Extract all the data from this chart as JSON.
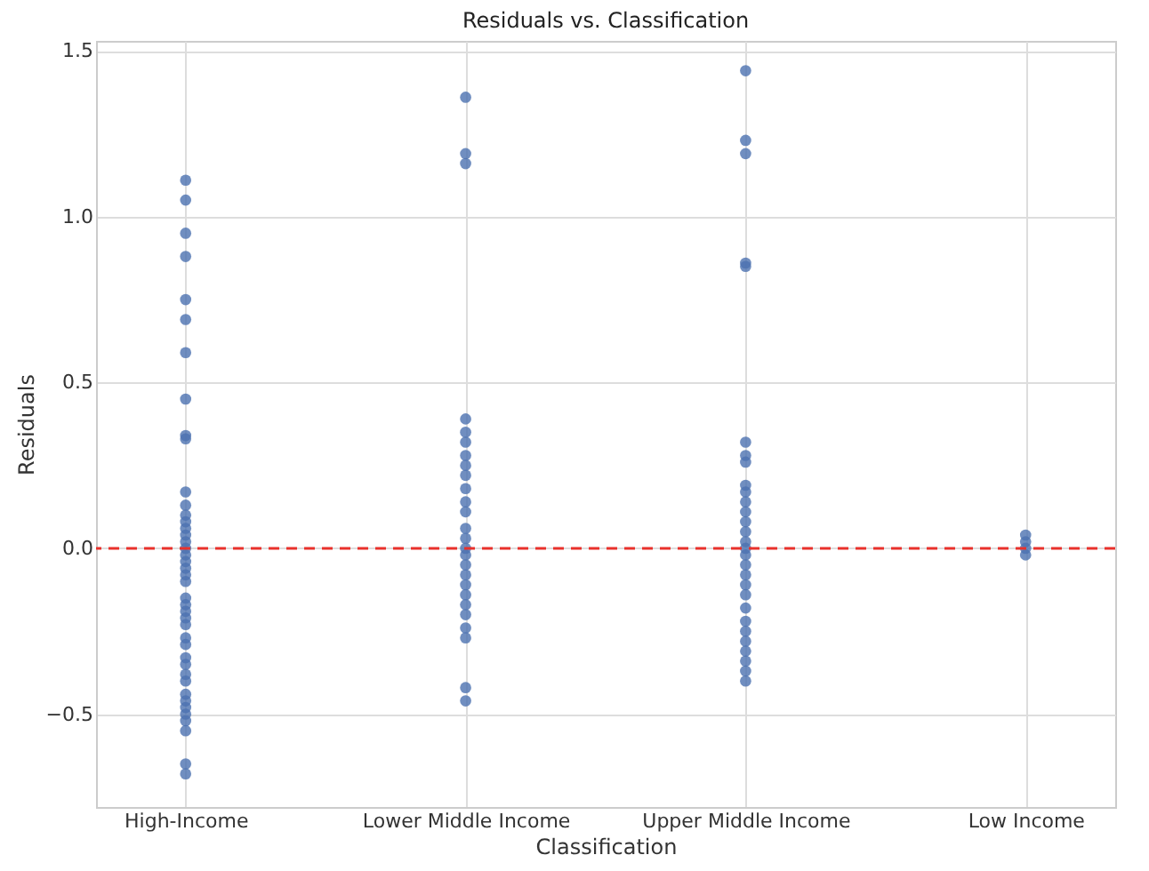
{
  "chart_data": {
    "type": "scatter",
    "title": "Residuals vs. Classification",
    "xlabel": "Classification",
    "ylabel": "Residuals",
    "categories": [
      "High-Income",
      "Lower Middle Income",
      "Upper Middle Income",
      "Low Income"
    ],
    "series": [
      {
        "color": "#4c72b0",
        "x": [
          "High-Income",
          "High-Income",
          "High-Income",
          "High-Income",
          "High-Income",
          "High-Income",
          "High-Income",
          "High-Income",
          "High-Income",
          "High-Income",
          "High-Income",
          "High-Income",
          "High-Income",
          "High-Income",
          "High-Income",
          "High-Income",
          "High-Income",
          "High-Income",
          "High-Income",
          "High-Income",
          "High-Income",
          "High-Income",
          "High-Income",
          "High-Income",
          "High-Income",
          "High-Income",
          "High-Income",
          "High-Income",
          "High-Income",
          "High-Income",
          "High-Income",
          "High-Income",
          "High-Income",
          "High-Income",
          "High-Income",
          "High-Income",
          "High-Income",
          "High-Income",
          "High-Income",
          "High-Income",
          "High-Income",
          "High-Income"
        ],
        "values": [
          1.11,
          1.05,
          0.95,
          0.88,
          0.75,
          0.69,
          0.59,
          0.45,
          0.34,
          0.33,
          0.17,
          0.13,
          0.1,
          0.08,
          0.06,
          0.04,
          0.02,
          0.0,
          -0.02,
          -0.04,
          -0.06,
          -0.08,
          -0.1,
          -0.15,
          -0.17,
          -0.19,
          -0.21,
          -0.23,
          -0.27,
          -0.29,
          -0.33,
          -0.35,
          -0.38,
          -0.4,
          -0.44,
          -0.46,
          -0.48,
          -0.5,
          -0.52,
          -0.55,
          -0.65,
          -0.68
        ]
      },
      {
        "color": "#4c72b0",
        "x": [
          "Lower Middle Income",
          "Lower Middle Income",
          "Lower Middle Income",
          "Lower Middle Income",
          "Lower Middle Income",
          "Lower Middle Income",
          "Lower Middle Income",
          "Lower Middle Income",
          "Lower Middle Income",
          "Lower Middle Income",
          "Lower Middle Income",
          "Lower Middle Income",
          "Lower Middle Income",
          "Lower Middle Income",
          "Lower Middle Income",
          "Lower Middle Income",
          "Lower Middle Income",
          "Lower Middle Income",
          "Lower Middle Income",
          "Lower Middle Income",
          "Lower Middle Income",
          "Lower Middle Income",
          "Lower Middle Income",
          "Lower Middle Income",
          "Lower Middle Income",
          "Lower Middle Income"
        ],
        "values": [
          1.36,
          1.19,
          1.16,
          0.39,
          0.35,
          0.32,
          0.28,
          0.25,
          0.22,
          0.18,
          0.14,
          0.11,
          0.06,
          0.03,
          0.0,
          -0.02,
          -0.05,
          -0.08,
          -0.11,
          -0.14,
          -0.17,
          -0.2,
          -0.24,
          -0.27,
          -0.42,
          -0.46
        ]
      },
      {
        "color": "#4c72b0",
        "x": [
          "Upper Middle Income",
          "Upper Middle Income",
          "Upper Middle Income",
          "Upper Middle Income",
          "Upper Middle Income",
          "Upper Middle Income",
          "Upper Middle Income",
          "Upper Middle Income",
          "Upper Middle Income",
          "Upper Middle Income",
          "Upper Middle Income",
          "Upper Middle Income",
          "Upper Middle Income",
          "Upper Middle Income",
          "Upper Middle Income",
          "Upper Middle Income",
          "Upper Middle Income",
          "Upper Middle Income",
          "Upper Middle Income",
          "Upper Middle Income",
          "Upper Middle Income",
          "Upper Middle Income",
          "Upper Middle Income",
          "Upper Middle Income",
          "Upper Middle Income",
          "Upper Middle Income",
          "Upper Middle Income",
          "Upper Middle Income",
          "Upper Middle Income"
        ],
        "values": [
          1.44,
          1.23,
          1.19,
          0.86,
          0.85,
          0.32,
          0.28,
          0.26,
          0.19,
          0.17,
          0.14,
          0.11,
          0.08,
          0.05,
          0.02,
          0.0,
          -0.02,
          -0.05,
          -0.08,
          -0.11,
          -0.14,
          -0.18,
          -0.22,
          -0.25,
          -0.28,
          -0.31,
          -0.34,
          -0.37,
          -0.4
        ]
      },
      {
        "color": "#4c72b0",
        "x": [
          "Low Income",
          "Low Income",
          "Low Income",
          "Low Income"
        ],
        "values": [
          0.04,
          0.02,
          0.0,
          -0.02
        ]
      }
    ],
    "ylim": [
      -0.78,
      1.53
    ],
    "yticks": [
      {
        "value": -0.5,
        "label": "−0.5"
      },
      {
        "value": 0,
        "label": "0.0"
      },
      {
        "value": 0.5,
        "label": "0.5"
      },
      {
        "value": 1,
        "label": "1.0"
      },
      {
        "value": 1.5,
        "label": "1.5"
      }
    ],
    "ref_lines": [
      {
        "axis": "y",
        "value": 0,
        "color": "#e8312b",
        "line_style": "dashed"
      }
    ],
    "grid": true,
    "marker": "circle"
  }
}
